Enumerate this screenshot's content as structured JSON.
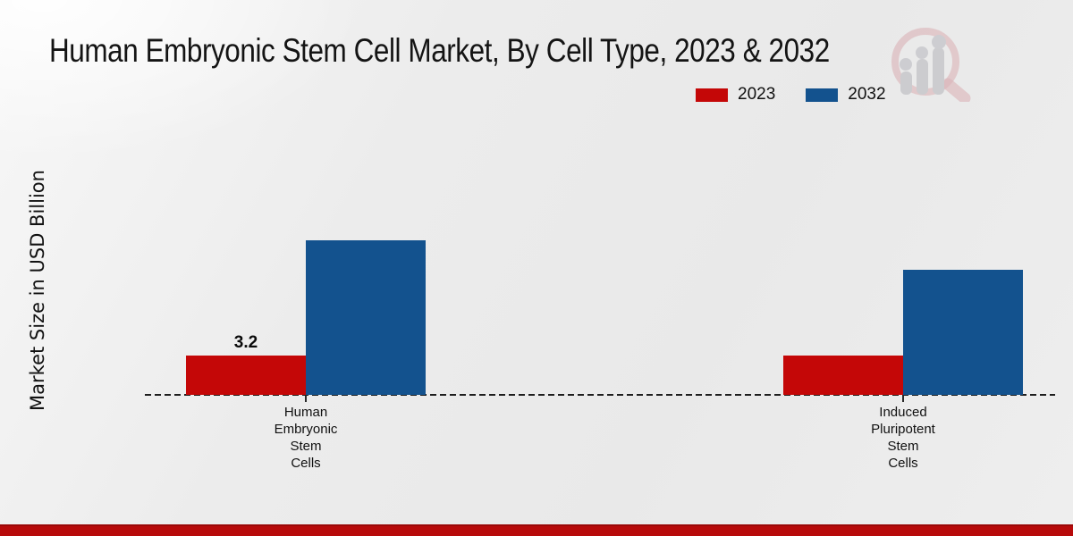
{
  "title": "Human Embryonic Stem Cell Market, By Cell Type, 2023 & 2032",
  "y_axis_label": "Market Size in USD Billion",
  "legend": [
    {
      "label": "2023",
      "color": "#c40707"
    },
    {
      "label": "2032",
      "color": "#13528e"
    }
  ],
  "watermark_icon": "bar-chart-magnifier-logo",
  "footer_bar_color": "#b70a0a",
  "chart_data": {
    "type": "bar",
    "title": "Human Embryonic Stem Cell Market, By Cell Type, 2023 & 2032",
    "xlabel": "",
    "ylabel": "Market Size in USD Billion",
    "categories": [
      "Human Embryonic Stem Cells",
      "Induced Pluripotent Stem Cells"
    ],
    "categories_wrapped": [
      [
        "Human",
        "Embryonic",
        "Stem",
        "Cells"
      ],
      [
        "Induced",
        "Pluripotent",
        "Stem",
        "Cells"
      ]
    ],
    "series": [
      {
        "name": "2023",
        "color": "#c40707",
        "values": [
          3.2,
          3.2
        ]
      },
      {
        "name": "2032",
        "color": "#13528e",
        "values": [
          12.6,
          10.2
        ]
      }
    ],
    "data_labels": [
      {
        "series": "2023",
        "category_index": 0,
        "text": "3.2"
      }
    ],
    "ylim": [
      0,
      14
    ],
    "grid": false,
    "legend_position": "top-right",
    "baseline_style": "dashed"
  }
}
